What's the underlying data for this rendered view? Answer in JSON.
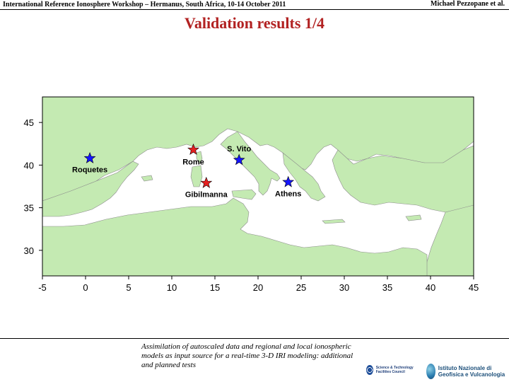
{
  "header": {
    "left": "International Reference Ionosphere Workshop – Hermanus, South Africa, 10-14 October 2011",
    "right": "Michael Pezzopane et al."
  },
  "title": "Validation results 1/4",
  "map": {
    "type": "map",
    "x_ticks": [
      "-5",
      "0",
      "5",
      "10",
      "15",
      "20",
      "25",
      "30",
      "35",
      "40",
      "45"
    ],
    "y_ticks": [
      "45",
      "40",
      "35",
      "30"
    ],
    "xlim": [
      -5,
      45
    ],
    "ylim": [
      27,
      48
    ],
    "land_color": "#c4eab2",
    "sea_color": "#ffffff",
    "stations": [
      {
        "name": "Roquetes",
        "lon": 0.5,
        "lat": 40.8,
        "color": "#1515ff"
      },
      {
        "name": "Rome",
        "lon": 12.5,
        "lat": 41.8,
        "color": "#e52020"
      },
      {
        "name": "S. Vito",
        "lon": 17.8,
        "lat": 40.6,
        "color": "#1515ff"
      },
      {
        "name": "Gibilmanna",
        "lon": 14.0,
        "lat": 37.9,
        "color": "#e52020"
      },
      {
        "name": "Athens",
        "lon": 23.5,
        "lat": 38.0,
        "color": "#1515ff"
      }
    ]
  },
  "caption": "Assimilation of autoscaled data and regional and local ionospheric models as input source for a real-time 3-D IRI modeling: additional and planned tests",
  "logos": {
    "st": "Science & Technology Facilities Council",
    "ingv": "Istituto Nazionale di Geofisica e Vulcanologia"
  }
}
